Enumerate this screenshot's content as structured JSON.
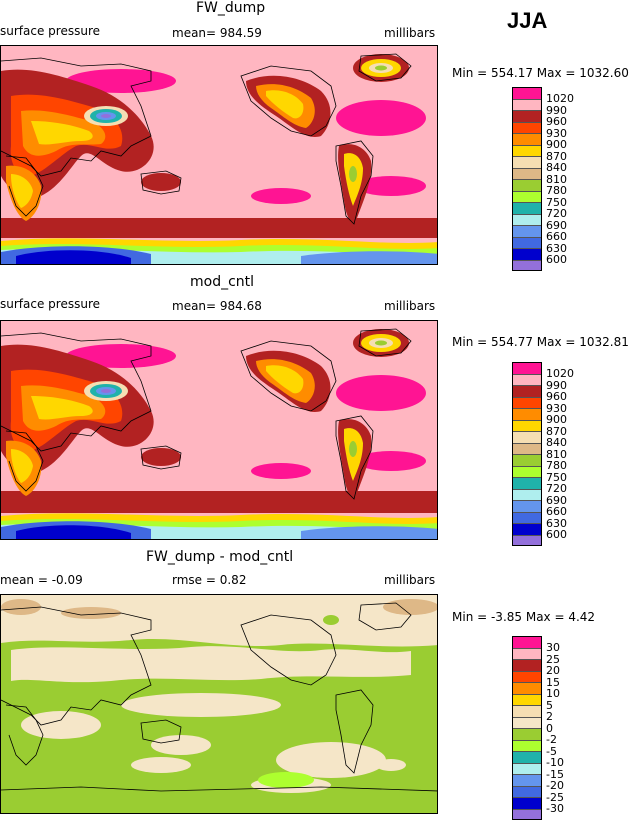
{
  "season": "JJA",
  "panels": [
    {
      "title": "FW_dump",
      "left_label": "surface pressure",
      "center_label": "mean=  984.59",
      "right_label": "millibars",
      "minmax": "Min = 554.17 Max = 1032.60",
      "legend": [
        "1020",
        "990",
        "960",
        "930",
        "900",
        "870",
        "840",
        "810",
        "780",
        "750",
        "720",
        "690",
        "660",
        "630",
        "600"
      ]
    },
    {
      "title": "mod_cntl",
      "left_label": "surface pressure",
      "center_label": "mean=  984.68",
      "right_label": "millibars",
      "minmax": "Min = 554.77 Max = 1032.81",
      "legend": [
        "1020",
        "990",
        "960",
        "930",
        "900",
        "870",
        "840",
        "810",
        "780",
        "750",
        "720",
        "690",
        "660",
        "630",
        "600"
      ]
    },
    {
      "title": "FW_dump - mod_cntl",
      "left_label": "mean =   -0.09",
      "center_label": "rmse =    0.82",
      "right_label": "millibars",
      "minmax": "Min =   -3.85 Max =    4.42",
      "legend": [
        "30",
        "25",
        "20",
        "15",
        "10",
        "5",
        "2",
        "0",
        "-2",
        "-5",
        "-10",
        "-15",
        "-20",
        "-25",
        "-30"
      ]
    }
  ],
  "colors": {
    "abs_scale": [
      "#ff1493",
      "#ffb6c1",
      "#b22222",
      "#ff4500",
      "#ff8c00",
      "#ffd700",
      "#f5deb3",
      "#deb887",
      "#9acd32",
      "#adff2f",
      "#20b2aa",
      "#afeeee",
      "#6495ed",
      "#4169e1",
      "#0000cd",
      "#9370db"
    ],
    "diff_scale": [
      "#ff1493",
      "#ffb6c1",
      "#b22222",
      "#ff4500",
      "#ff8c00",
      "#ffd700",
      "#f5deb3",
      "#f5e6c8",
      "#9acd32",
      "#adff2f",
      "#20b2aa",
      "#afeeee",
      "#6495ed",
      "#4169e1",
      "#0000cd",
      "#9370db"
    ]
  }
}
